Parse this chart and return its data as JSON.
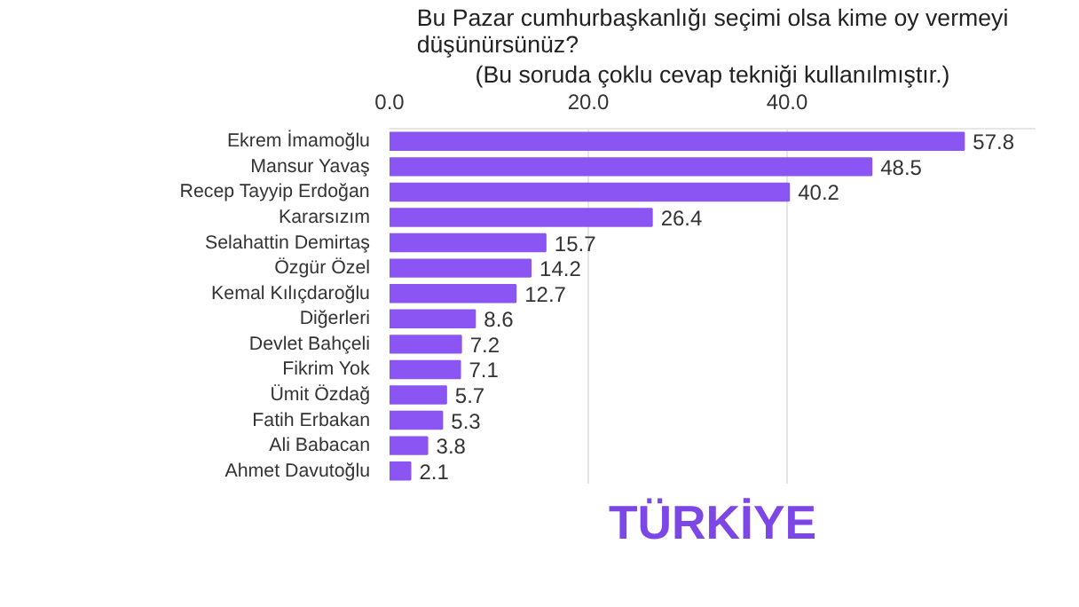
{
  "chart_data": {
    "type": "bar",
    "orientation": "horizontal",
    "title": "Bu Pazar cumhurbaşkanlığı seçimi olsa kime oy vermeyi düşünürsünüz?",
    "subtitle": "(Bu soruda çoklu cevap tekniği kullanılmıştır.)",
    "categories": [
      "Ekrem İmamoğlu",
      "Mansur Yavaş",
      "Recep Tayyip Erdoğan",
      "Kararsızım",
      "Selahattin Demirtaş",
      "Özgür Özel",
      "Kemal Kılıçdaroğlu",
      "Diğerleri",
      "Devlet Bahçeli",
      "Fikrim Yok",
      "Ümit Özdağ",
      "Fatih Erbakan",
      "Ali Babacan",
      "Ahmet Davutoğlu"
    ],
    "values": [
      57.8,
      48.5,
      40.2,
      26.4,
      15.7,
      14.2,
      12.7,
      8.6,
      7.2,
      7.1,
      5.7,
      5.3,
      3.8,
      2.1
    ],
    "color": "#8a55f2",
    "xlim": [
      0,
      65
    ],
    "xticks": [
      {
        "value": 0,
        "label": "0.0"
      },
      {
        "value": 20,
        "label": "20.0"
      },
      {
        "value": 40,
        "label": "40.0"
      }
    ],
    "grid": "x",
    "data_labels": true,
    "annotations": [
      "TÜRKİYE"
    ]
  }
}
